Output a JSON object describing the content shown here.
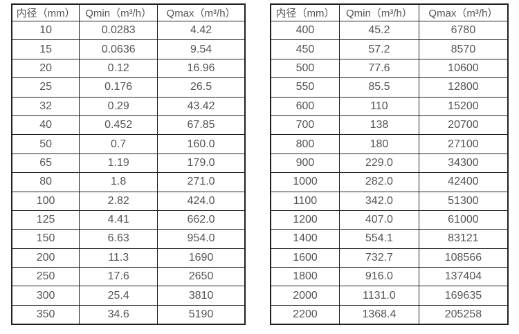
{
  "page": {
    "background": "#ffffff"
  },
  "colors": {
    "border": "#1f1f1f",
    "text": "#545454",
    "background": "#ffffff"
  },
  "chart_data": [
    {
      "type": "table",
      "title": "",
      "columns": [
        "内径（mm）",
        "Qmin（m³/h）",
        "Qmax（m³/h）"
      ],
      "rows": [
        [
          "10",
          "0.0283",
          "4.42"
        ],
        [
          "15",
          "0.0636",
          "9.54"
        ],
        [
          "20",
          "0.12",
          "16.96"
        ],
        [
          "25",
          "0.176",
          "26.5"
        ],
        [
          "32",
          "0.29",
          "43.42"
        ],
        [
          "40",
          "0.452",
          "67.85"
        ],
        [
          "50",
          "0.7",
          "160.0"
        ],
        [
          "65",
          "1.19",
          "179.0"
        ],
        [
          "80",
          "1.8",
          "271.0"
        ],
        [
          "100",
          "2.82",
          "424.0"
        ],
        [
          "125",
          "4.41",
          "662.0"
        ],
        [
          "150",
          "6.63",
          "954.0"
        ],
        [
          "200",
          "11.3",
          "1690"
        ],
        [
          "250",
          "17.6",
          "2650"
        ],
        [
          "300",
          "25.4",
          "3810"
        ],
        [
          "350",
          "34.6",
          "5190"
        ]
      ]
    },
    {
      "type": "table",
      "title": "",
      "columns": [
        "内径（mm）",
        "Qmin（m³/h）",
        "Qmax（m³/h）"
      ],
      "rows": [
        [
          "400",
          "45.2",
          "6780"
        ],
        [
          "450",
          "57.2",
          "8570"
        ],
        [
          "500",
          "77.6",
          "10600"
        ],
        [
          "550",
          "85.5",
          "12800"
        ],
        [
          "600",
          "110",
          "15200"
        ],
        [
          "700",
          "138",
          "20700"
        ],
        [
          "800",
          "180",
          "27100"
        ],
        [
          "900",
          "229.0",
          "34300"
        ],
        [
          "1000",
          "282.0",
          "42400"
        ],
        [
          "1100",
          "342.0",
          "51300"
        ],
        [
          "1200",
          "407.0",
          "61000"
        ],
        [
          "1400",
          "554.1",
          "83121"
        ],
        [
          "1600",
          "732.7",
          "108566"
        ],
        [
          "1800",
          "916.0",
          "137404"
        ],
        [
          "2000",
          "1131.0",
          "169635"
        ],
        [
          "2200",
          "1368.4",
          "205258"
        ]
      ]
    }
  ]
}
